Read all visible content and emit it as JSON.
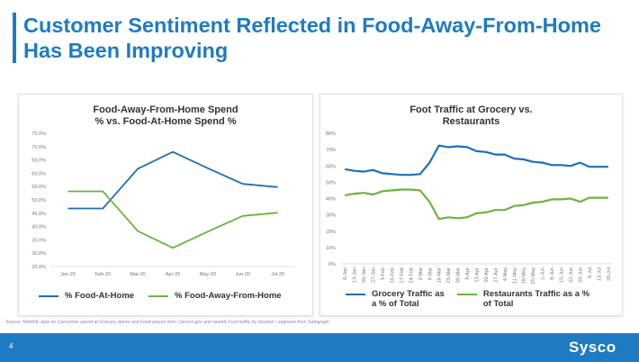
{
  "slide": {
    "title": "Customer Sentiment Reflected in Food-Away-From-Home Has Been Improving",
    "source": "Source: Monthly data on Consumer spend at Grocery stores and Food places from Census.gov and weekly Foot traffic by location / segment from Safegraph",
    "page_number": "4",
    "logo_text": "Sysco"
  },
  "colors": {
    "blue": "#1f6fb4",
    "green": "#6db33f",
    "accent": "#1f7bc2"
  },
  "chart_data": [
    {
      "type": "line",
      "title_line1": "Food-Away-From-Home Spend",
      "title_line2": "% vs. Food-At-Home Spend %",
      "categories": [
        "Jan-20",
        "Feb-20",
        "Mar-20",
        "Apr-20",
        "May-20",
        "Jun-20",
        "Jul-20"
      ],
      "yticks": [
        "25.0%",
        "30.0%",
        "35.0%",
        "40.0%",
        "45.0%",
        "50.0%",
        "55.0%",
        "60.0%",
        "65.0%",
        "70.0%",
        "75.0%"
      ],
      "ylim": [
        25,
        75
      ],
      "series": [
        {
          "name": "% Food-At-Home",
          "color": "#1f6fb4",
          "values": [
            46.8,
            46.8,
            61.7,
            68.0,
            61.9,
            56.0,
            54.8
          ]
        },
        {
          "name": "% Food-Away-From-Home",
          "color": "#6db33f",
          "values": [
            53.2,
            53.2,
            38.3,
            32.0,
            38.1,
            44.0,
            45.2
          ]
        }
      ],
      "legend": [
        "% Food-At-Home",
        "% Food-Away-From-Home"
      ]
    },
    {
      "type": "line",
      "title_line1": "Foot Traffic at Grocery vs.",
      "title_line2": "Restaurants",
      "categories": [
        "6-Jan",
        "13-Jan",
        "20-Jan",
        "27-Jan",
        "3-Feb",
        "10-Feb",
        "17-Feb",
        "24-Feb",
        "2-Mar",
        "9-Mar",
        "16-Mar",
        "23-Mar",
        "30-Mar",
        "6-Apr",
        "13-Apr",
        "20-Apr",
        "27-Apr",
        "4-May",
        "11-May",
        "18-May",
        "25-May",
        "1-Jun",
        "8-Jun",
        "15-Jun",
        "22-Jun",
        "29-Jun",
        "6-Jul",
        "13-Jul",
        "20-Jul"
      ],
      "yticks": [
        "0%",
        "10%",
        "20%",
        "30%",
        "40%",
        "50%",
        "60%",
        "70%",
        "80%"
      ],
      "ylim": [
        0,
        80
      ],
      "series": [
        {
          "name": "Grocery Traffic as a % of Total",
          "color": "#1f6fb4",
          "values": [
            58,
            57,
            56.5,
            57.5,
            55.5,
            55,
            54.5,
            54.5,
            55,
            62,
            72.5,
            71.5,
            72,
            71.5,
            69,
            68.5,
            67,
            67,
            64.5,
            64,
            62.5,
            62,
            60.5,
            60.5,
            60,
            62,
            59.5,
            59.5,
            59.5
          ]
        },
        {
          "name": "Restaurants Traffic as a % of Total",
          "color": "#6db33f",
          "values": [
            42,
            43,
            43.5,
            42.5,
            44.5,
            45,
            45.5,
            45.5,
            45,
            38,
            27.5,
            28.5,
            28,
            28.5,
            31,
            31.5,
            33,
            33,
            35.5,
            36,
            37.5,
            38,
            39.5,
            39.5,
            40,
            38,
            40.5,
            40.5,
            40.5
          ]
        }
      ],
      "legend": [
        "Grocery Traffic as a % of Total",
        "Restaurants Traffic as a % of Total"
      ]
    }
  ]
}
